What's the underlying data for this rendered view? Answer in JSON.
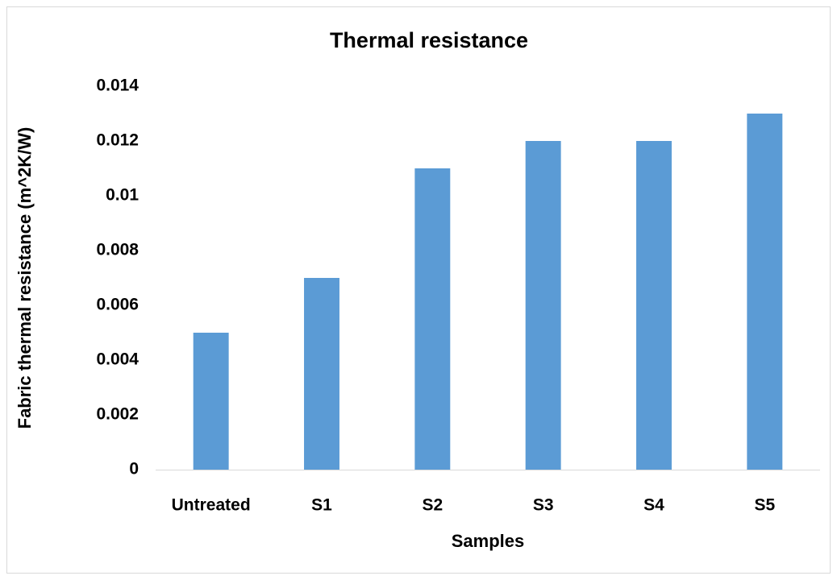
{
  "chart_data": {
    "type": "bar",
    "title": "Thermal resistance",
    "x_label": "Samples",
    "y_label": "Fabric thermal resistance (m^2K/W)",
    "categories": [
      "Untreated",
      "S1",
      "S2",
      "S3",
      "S4",
      "S5"
    ],
    "values": [
      0.005,
      0.007,
      0.011,
      0.012,
      0.012,
      0.013
    ],
    "color": "#5b9bd5",
    "ylim": [
      0,
      0.014
    ],
    "yticks": [
      0,
      0.002,
      0.004,
      0.006,
      0.008,
      0.01,
      0.012,
      0.014
    ],
    "grid": false
  }
}
